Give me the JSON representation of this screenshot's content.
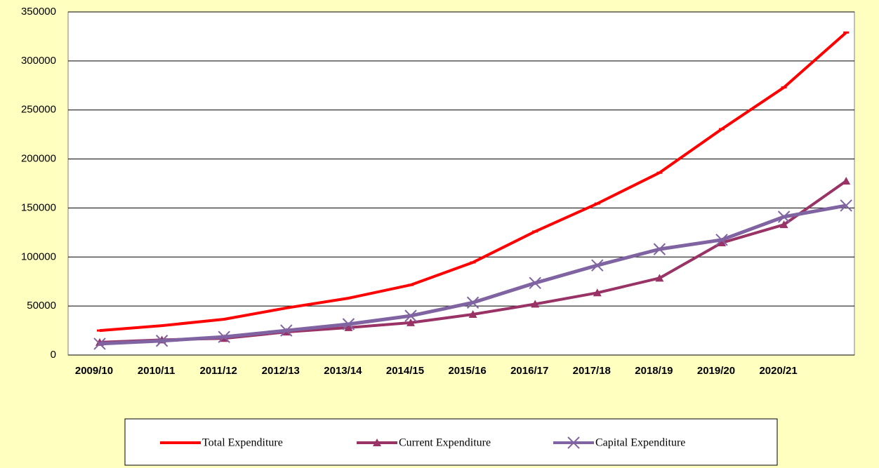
{
  "chart_data": {
    "type": "line",
    "categories": [
      "2009/10",
      "2010/11",
      "2011/12",
      "2012/13",
      "2013/14",
      "2014/15",
      "2015/16",
      "2016/17",
      "2017/18",
      "2018/19",
      "2019/20",
      "2020/21",
      null
    ],
    "series": [
      {
        "name": "Total Expenditure",
        "color": "#ff0000",
        "marker": "dash",
        "values": [
          25000,
          30000,
          36500,
          48000,
          58000,
          71500,
          94500,
          126000,
          154500,
          186000,
          230500,
          273000,
          329000
        ]
      },
      {
        "name": "Current Expenditure",
        "color": "#993366",
        "marker": "triangle",
        "values": [
          13000,
          15500,
          17000,
          23500,
          28000,
          33000,
          41500,
          52000,
          63500,
          78500,
          114500,
          133000,
          177500
        ]
      },
      {
        "name": "Capital Expenditure",
        "color": "#8064a2",
        "marker": "x",
        "values": [
          11500,
          14500,
          18500,
          25000,
          31500,
          40000,
          53500,
          73500,
          91500,
          108000,
          117500,
          141000,
          152500
        ]
      }
    ],
    "ylim": [
      0,
      350000
    ],
    "yticks": [
      0,
      50000,
      100000,
      150000,
      200000,
      250000,
      300000,
      350000
    ],
    "grid": true,
    "legend": "bottom"
  }
}
